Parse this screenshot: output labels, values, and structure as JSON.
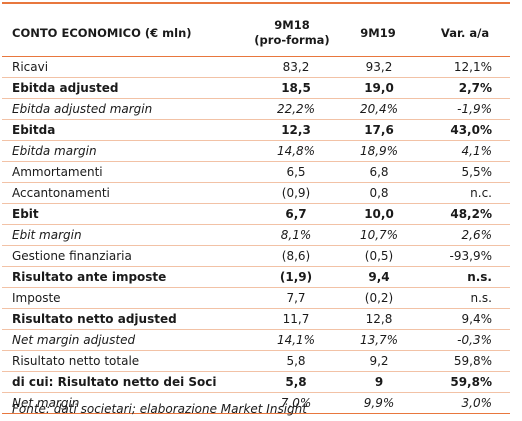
{
  "header": {
    "label": "CONTO ECONOMICO (€ mln)",
    "col1_line1": "9M18",
    "col1_line2": "(pro-forma)",
    "col2": "9M19",
    "col3": "Var. a/a"
  },
  "rows": [
    {
      "label": "Ricavi",
      "v1": "83,2",
      "v2": "93,2",
      "v3": "12,1%",
      "style": "normal"
    },
    {
      "label": "Ebitda adjusted",
      "v1": "18,5",
      "v2": "19,0",
      "v3": "2,7%",
      "style": "bold"
    },
    {
      "label": "Ebitda adjusted margin",
      "v1": "22,2%",
      "v2": "20,4%",
      "v3": "-1,9%",
      "style": "ital"
    },
    {
      "label": "Ebitda",
      "v1": "12,3",
      "v2": "17,6",
      "v3": "43,0%",
      "style": "bold"
    },
    {
      "label": "Ebitda margin",
      "v1": "14,8%",
      "v2": "18,9%",
      "v3": "4,1%",
      "style": "ital"
    },
    {
      "label": "Ammortamenti",
      "v1": "6,5",
      "v2": "6,8",
      "v3": "5,5%",
      "style": "normal"
    },
    {
      "label": "Accantonamenti",
      "v1": "(0,9)",
      "v2": "0,8",
      "v3": "n.c.",
      "style": "normal"
    },
    {
      "label": "Ebit",
      "v1": "6,7",
      "v2": "10,0",
      "v3": "48,2%",
      "style": "bold"
    },
    {
      "label": "Ebit margin",
      "v1": "8,1%",
      "v2": "10,7%",
      "v3": "2,6%",
      "style": "ital"
    },
    {
      "label": "Gestione finanziaria",
      "v1": "(8,6)",
      "v2": "(0,5)",
      "v3": "-93,9%",
      "style": "normal"
    },
    {
      "label": "Risultato ante imposte",
      "v1": "(1,9)",
      "v2": "9,4",
      "v3": "n.s.",
      "style": "bold"
    },
    {
      "label": "Imposte",
      "v1": "7,7",
      "v2": "(0,2)",
      "v3": "n.s.",
      "style": "normal"
    },
    {
      "label": "Risultato netto adjusted",
      "v1": "11,7",
      "v2": "12,8",
      "v3": "9,4%",
      "style": "bold-label"
    },
    {
      "label": "Net margin adjusted",
      "v1": "14,1%",
      "v2": "13,7%",
      "v3": "-0,3%",
      "style": "ital"
    },
    {
      "label": "Risultato netto totale",
      "v1": "5,8",
      "v2": "9,2",
      "v3": "59,8%",
      "style": "normal"
    },
    {
      "label": "di cui: Risultato netto dei Soci",
      "v1": "5,8",
      "v2": "9",
      "v3": "59,8%",
      "style": "bold"
    },
    {
      "label": "Net margin",
      "v1": "7,0%",
      "v2": "9,9%",
      "v3": "3,0%",
      "style": "ital"
    }
  ],
  "footnote": "Fonte: dati societari; elaborazione Market Insight",
  "colors": {
    "accent": "#e8773e",
    "rule": "#f2c2a6"
  }
}
